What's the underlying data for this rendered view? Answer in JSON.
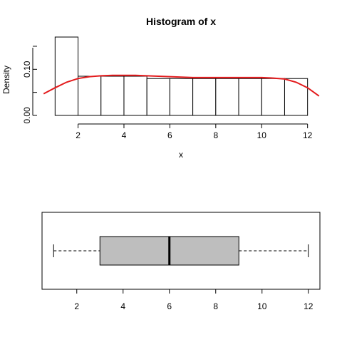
{
  "chart_data": [
    {
      "type": "bar",
      "subtype": "histogram",
      "title": "Histogram of x",
      "xlabel": "x",
      "ylabel": "Density",
      "bins": [
        {
          "x0": 1,
          "x1": 2,
          "density": 0.17
        },
        {
          "x0": 2,
          "x1": 3,
          "density": 0.085
        },
        {
          "x0": 3,
          "x1": 4,
          "density": 0.085
        },
        {
          "x0": 4,
          "x1": 5,
          "density": 0.085
        },
        {
          "x0": 5,
          "x1": 6,
          "density": 0.08
        },
        {
          "x0": 6,
          "x1": 7,
          "density": 0.08
        },
        {
          "x0": 7,
          "x1": 8,
          "density": 0.08
        },
        {
          "x0": 8,
          "x1": 9,
          "density": 0.08
        },
        {
          "x0": 9,
          "x1": 10,
          "density": 0.08
        },
        {
          "x0": 10,
          "x1": 11,
          "density": 0.08
        },
        {
          "x0": 11,
          "x1": 12,
          "density": 0.08
        }
      ],
      "density_curve": {
        "color": "#e31a1c",
        "points": [
          [
            0.5,
            0.047
          ],
          [
            1.0,
            0.06
          ],
          [
            1.5,
            0.072
          ],
          [
            2.0,
            0.08
          ],
          [
            2.5,
            0.084
          ],
          [
            3.0,
            0.086
          ],
          [
            3.5,
            0.087
          ],
          [
            4.0,
            0.087
          ],
          [
            4.5,
            0.087
          ],
          [
            5.0,
            0.086
          ],
          [
            5.5,
            0.085
          ],
          [
            6.0,
            0.084
          ],
          [
            6.5,
            0.083
          ],
          [
            7.0,
            0.082
          ],
          [
            7.5,
            0.082
          ],
          [
            8.0,
            0.082
          ],
          [
            8.5,
            0.082
          ],
          [
            9.0,
            0.082
          ],
          [
            9.5,
            0.082
          ],
          [
            10.0,
            0.082
          ],
          [
            10.5,
            0.081
          ],
          [
            11.0,
            0.079
          ],
          [
            11.5,
            0.072
          ],
          [
            12.0,
            0.06
          ],
          [
            12.5,
            0.042
          ]
        ]
      },
      "xlim": [
        0.4,
        12.6
      ],
      "ylim": [
        0,
        0.17
      ],
      "x_ticks": [
        2,
        4,
        6,
        8,
        10,
        12
      ],
      "x_tick_labels": [
        "2",
        "4",
        "6",
        "8",
        "10",
        "12"
      ],
      "y_ticks": [
        0,
        0.1
      ],
      "y_tick_labels": [
        "0.00",
        "0.10"
      ],
      "bar_fill": "#ffffff",
      "bar_stroke": "#000000"
    },
    {
      "type": "boxplot",
      "orientation": "horizontal",
      "whisker_low": 1,
      "q1": 3,
      "median": 6,
      "q3": 9,
      "whisker_high": 12,
      "xlim": [
        0.5,
        12.5
      ],
      "x_ticks": [
        2,
        4,
        6,
        8,
        10,
        12
      ],
      "x_tick_labels": [
        "2",
        "4",
        "6",
        "8",
        "10",
        "12"
      ],
      "box_fill": "#bebebe"
    }
  ]
}
